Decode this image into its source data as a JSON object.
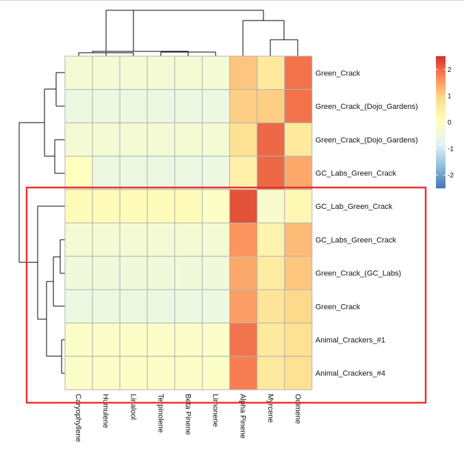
{
  "chart_data": {
    "type": "heatmap",
    "rows": [
      "Green_Crack",
      "Green_Crack_(Dojo_Gardens)",
      "Green_Crack_(Dojo_Gardens)",
      "GC_Labs_Green_Crack",
      "GC_Lab_Green_Crack",
      "GC_Labs_Green_Crack",
      "Green_Crack_(GC_Labs)",
      "Green_Crack",
      "Animal_Crackers_#1",
      "Animal_Crackers_#4"
    ],
    "columns": [
      "Caryophyllene",
      "Humulene",
      "Linalool",
      "Terpinolene",
      "Beta Pinene",
      "Limonene",
      "Alpha Pinene",
      "Myrcene",
      "Ocimene"
    ],
    "values": [
      [
        -0.3,
        -0.3,
        -0.3,
        -0.3,
        -0.3,
        -0.3,
        1.1,
        0.6,
        1.9
      ],
      [
        -0.5,
        -0.5,
        -0.5,
        -0.5,
        -0.5,
        -0.5,
        1.0,
        1.0,
        1.9
      ],
      [
        -0.3,
        -0.3,
        -0.3,
        -0.3,
        -0.3,
        -0.3,
        0.8,
        2.0,
        0.6
      ],
      [
        0.0,
        -0.5,
        -0.5,
        -0.5,
        -0.5,
        -0.5,
        0.4,
        2.0,
        1.4
      ],
      [
        0.1,
        0.1,
        0.1,
        0.1,
        0.1,
        -0.1,
        2.2,
        -0.2,
        0.2
      ],
      [
        -0.3,
        -0.3,
        -0.3,
        -0.3,
        -0.3,
        -0.3,
        1.6,
        0.3,
        1.2
      ],
      [
        -0.4,
        -0.4,
        -0.4,
        -0.4,
        -0.4,
        -0.4,
        1.4,
        0.5,
        1.1
      ],
      [
        -0.5,
        -0.5,
        -0.5,
        -0.5,
        -0.5,
        -0.5,
        1.5,
        0.7,
        0.9
      ],
      [
        -0.1,
        -0.1,
        -0.1,
        -0.1,
        -0.1,
        -0.1,
        1.9,
        0.6,
        0.8
      ],
      [
        -0.1,
        -0.1,
        -0.1,
        -0.1,
        -0.1,
        -0.1,
        1.8,
        0.6,
        0.8
      ]
    ],
    "color_scale": {
      "min": -2.5,
      "max": 2.5,
      "ticks": [
        2,
        1,
        0,
        -1,
        -2
      ],
      "colors": [
        "#4575b4",
        "#91bfdb",
        "#e0f3f8",
        "#ffffbf",
        "#fee090",
        "#fc8d59",
        "#d73027"
      ]
    },
    "grid_color": "#b3b3b3",
    "highlight_rows": [
      4,
      9
    ],
    "highlight_color": "#e8312f",
    "legend_position": "right",
    "row_dendrogram": true,
    "col_dendrogram": true
  }
}
